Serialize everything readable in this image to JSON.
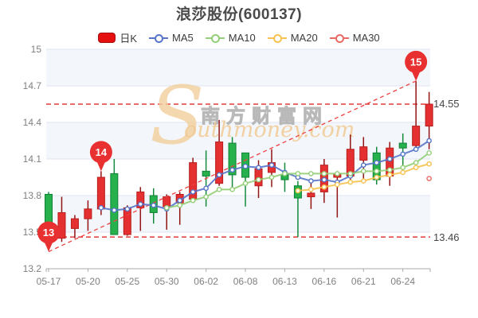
{
  "chart_data": {
    "type": "candlestick",
    "title": "浪莎股份(600137)",
    "legend": {
      "items": [
        {
          "label": "日K",
          "color": "#e60f0f",
          "type": "rect"
        },
        {
          "label": "MA5",
          "color": "#5674c8",
          "type": "line"
        },
        {
          "label": "MA10",
          "color": "#94ce77",
          "type": "line"
        },
        {
          "label": "MA20",
          "color": "#f7c24f",
          "type": "line"
        },
        {
          "label": "MA30",
          "color": "#ea6a63",
          "type": "line"
        }
      ]
    },
    "y_axis": {
      "min": 13.2,
      "max": 15,
      "ticks": [
        "15",
        "14.7",
        "14.4",
        "14.1",
        "13.8",
        "13.5",
        "13.2"
      ]
    },
    "x_axis": {
      "labels": [
        {
          "text": "05-17",
          "index": 0
        },
        {
          "text": "05-20",
          "index": 3
        },
        {
          "text": "05-25",
          "index": 6
        },
        {
          "text": "05-30",
          "index": 9
        },
        {
          "text": "06-02",
          "index": 12
        },
        {
          "text": "06-08",
          "index": 15
        },
        {
          "text": "06-13",
          "index": 18
        },
        {
          "text": "06-16",
          "index": 21
        },
        {
          "text": "06-21",
          "index": 24
        },
        {
          "text": "06-24",
          "index": 27
        }
      ]
    },
    "candles": [
      {
        "date": "05-17",
        "o": 13.81,
        "c": 13.58,
        "h": 13.83,
        "l": 13.35
      },
      {
        "date": "05-18",
        "o": 13.45,
        "c": 13.66,
        "h": 13.79,
        "l": 13.42
      },
      {
        "date": "05-19",
        "o": 13.53,
        "c": 13.61,
        "h": 13.64,
        "l": 13.45
      },
      {
        "date": "05-20",
        "o": 13.61,
        "c": 13.69,
        "h": 13.76,
        "l": 13.51
      },
      {
        "date": "05-23",
        "o": 13.69,
        "c": 13.95,
        "h": 14.0,
        "l": 13.64
      },
      {
        "date": "05-24",
        "o": 13.98,
        "c": 13.48,
        "h": 14.1,
        "l": 13.48
      },
      {
        "date": "05-25",
        "o": 13.48,
        "c": 13.7,
        "h": 13.72,
        "l": 13.47
      },
      {
        "date": "05-26",
        "o": 13.7,
        "c": 13.83,
        "h": 13.87,
        "l": 13.51
      },
      {
        "date": "05-27",
        "o": 13.8,
        "c": 13.66,
        "h": 13.86,
        "l": 13.57
      },
      {
        "date": "05-30",
        "o": 13.71,
        "c": 13.79,
        "h": 13.81,
        "l": 13.52
      },
      {
        "date": "05-31",
        "o": 13.74,
        "c": 13.81,
        "h": 13.83,
        "l": 13.56
      },
      {
        "date": "06-01",
        "o": 13.77,
        "c": 14.07,
        "h": 14.11,
        "l": 13.77
      },
      {
        "date": "06-02",
        "o": 14.0,
        "c": 13.96,
        "h": 14.17,
        "l": 13.71
      },
      {
        "date": "06-06",
        "o": 13.9,
        "c": 14.24,
        "h": 14.42,
        "l": 13.88
      },
      {
        "date": "06-07",
        "o": 14.23,
        "c": 13.97,
        "h": 14.28,
        "l": 13.85
      },
      {
        "date": "06-08",
        "o": 14.15,
        "c": 13.95,
        "h": 14.15,
        "l": 13.71
      },
      {
        "date": "06-09",
        "o": 13.88,
        "c": 14.02,
        "h": 14.09,
        "l": 13.78
      },
      {
        "date": "06-10",
        "o": 13.99,
        "c": 14.07,
        "h": 14.18,
        "l": 13.87
      },
      {
        "date": "06-13",
        "o": 13.97,
        "c": 13.93,
        "h": 14.07,
        "l": 13.83
      },
      {
        "date": "06-14",
        "o": 13.88,
        "c": 13.78,
        "h": 13.92,
        "l": 13.46
      },
      {
        "date": "06-15",
        "o": 13.79,
        "c": 13.82,
        "h": 13.92,
        "l": 13.69
      },
      {
        "date": "06-16",
        "o": 13.83,
        "c": 14.05,
        "h": 14.1,
        "l": 13.74
      },
      {
        "date": "06-17",
        "o": 13.95,
        "c": 13.98,
        "h": 14.0,
        "l": 13.62
      },
      {
        "date": "06-20",
        "o": 13.96,
        "c": 14.18,
        "h": 14.3,
        "l": 13.93
      },
      {
        "date": "06-21",
        "o": 14.09,
        "c": 14.2,
        "h": 14.28,
        "l": 13.9
      },
      {
        "date": "06-22",
        "o": 14.15,
        "c": 13.93,
        "h": 14.2,
        "l": 13.89
      },
      {
        "date": "06-23",
        "o": 13.96,
        "c": 14.19,
        "h": 14.24,
        "l": 13.88
      },
      {
        "date": "06-24",
        "o": 14.23,
        "c": 14.19,
        "h": 14.31,
        "l": 14.05
      },
      {
        "date": "06-27",
        "o": 14.21,
        "c": 14.37,
        "h": 14.74,
        "l": 14.18
      },
      {
        "date": "06-28",
        "o": 14.37,
        "c": 14.55,
        "h": 14.65,
        "l": 14.18
      }
    ],
    "ma5": [
      null,
      null,
      null,
      null,
      13.7,
      13.68,
      13.69,
      13.73,
      13.72,
      13.69,
      13.76,
      13.83,
      13.86,
      13.97,
      14.01,
      14.04,
      14.03,
      14.05,
      13.99,
      13.95,
      13.92,
      13.93,
      13.91,
      13.96,
      14.05,
      14.07,
      14.1,
      14.14,
      14.18,
      14.25
    ],
    "ma10": [
      null,
      null,
      null,
      null,
      null,
      null,
      null,
      null,
      null,
      13.7,
      13.72,
      13.76,
      13.79,
      13.85,
      13.85,
      13.9,
      13.93,
      13.95,
      13.98,
      13.98,
      13.98,
      13.98,
      13.98,
      13.98,
      14.0,
      14.0,
      14.01,
      14.03,
      14.07,
      14.15
    ],
    "ma20": [
      null,
      null,
      null,
      null,
      null,
      null,
      null,
      null,
      null,
      null,
      null,
      null,
      null,
      null,
      null,
      null,
      null,
      null,
      null,
      13.84,
      13.85,
      13.87,
      13.89,
      13.91,
      13.92,
      13.95,
      13.97,
      13.99,
      14.03,
      14.06
    ],
    "ma30": [
      null,
      null,
      null,
      null,
      null,
      null,
      null,
      null,
      null,
      null,
      null,
      null,
      null,
      null,
      null,
      null,
      null,
      null,
      null,
      null,
      null,
      null,
      null,
      null,
      null,
      null,
      null,
      null,
      null,
      13.94
    ],
    "reference_lines": [
      {
        "value": 14.55,
        "label": "14.55"
      },
      {
        "value": 13.46,
        "label": "13.46"
      }
    ],
    "trend_line": {
      "from_index": 0,
      "from_price": 13.34,
      "to_index": 28,
      "to_price": 14.74
    },
    "markers": [
      {
        "text": "13",
        "index": 0,
        "price": 13.34
      },
      {
        "text": "14",
        "index": 4,
        "price": 14.0
      },
      {
        "text": "15",
        "index": 28,
        "price": 14.74
      }
    ],
    "colors": {
      "up": "#e43030",
      "up_border": "#b81d1d",
      "up_wick": "#921414",
      "down": "#27b14c",
      "down_border": "#0f8136",
      "down_wick": "#148a3e",
      "grid": "#dde4f0",
      "band": "#f3f6fb",
      "axis": "#aaaaaa",
      "tick_label": "#808080",
      "ref_line": "#e23b3b",
      "trend": "#ef4040",
      "pin": "#e93030"
    },
    "watermark": {
      "logo": "S",
      "cn": "南方财富网",
      "en": "outhmoney.com"
    }
  }
}
